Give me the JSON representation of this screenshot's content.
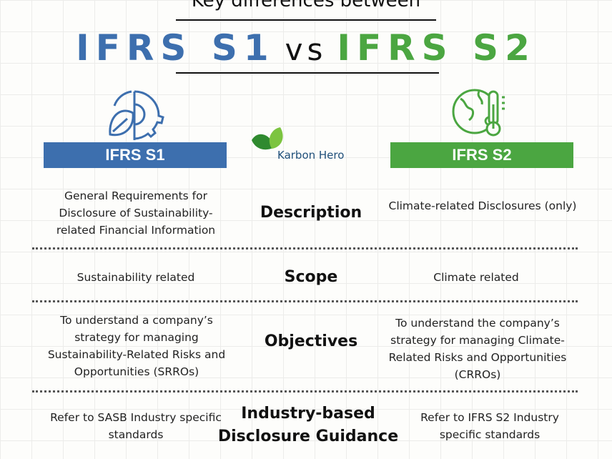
{
  "header": {
    "kicker": "Key differences between",
    "title_left": "IFRS S1",
    "title_vs": "vs",
    "title_right": "IFRS S2"
  },
  "colors": {
    "s1_blue": "#3d6fae",
    "s2_green": "#4ba641"
  },
  "columns": {
    "left": {
      "label": "IFRS S1",
      "icon": "leaf-gear-icon"
    },
    "right": {
      "label": "IFRS S2",
      "icon": "globe-thermometer-icon"
    }
  },
  "logo": {
    "text": "Karbon Hero",
    "icon": "leaves-icon"
  },
  "rows": [
    {
      "label": "Description",
      "left": "General Requirements for Disclosure of Sustainability-related Financial Information",
      "right": "Climate-related Disclosures (only)"
    },
    {
      "label": "Scope",
      "left": "Sustainability related",
      "right": "Climate related"
    },
    {
      "label": "Objectives",
      "left": "To understand a company’s strategy for managing Sustainability-Related Risks and Opportunities (SRROs)",
      "right": "To understand the company’s strategy for managing Climate-Related Risks and Opportunities (CRROs)"
    },
    {
      "label": "Industry-based Disclosure Guidance",
      "left": "Refer to SASB Industry specific standards",
      "right": "Refer to IFRS S2 Industry specific standards"
    }
  ]
}
